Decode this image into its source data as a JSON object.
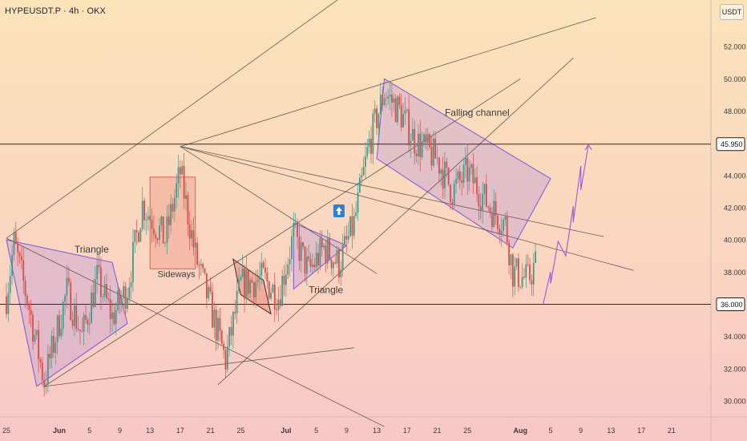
{
  "header": {
    "symbol_title": "HYPEUSDT.P · 4h · OKX",
    "currency_button": "USDT"
  },
  "colors": {
    "background_top": "#fbe3b9",
    "background_bottom": "#f8c7c6",
    "candle_up": "#3e9c8c",
    "candle_down": "#e04a47",
    "channel_outline": "#7a55d9",
    "channel_fill": "#c9a6d2",
    "sideways_fill": "#f0a090",
    "sideways_outline": "#e0604c",
    "trend_line": "#4a4340",
    "projection_line": "#9b59d6",
    "level_line": "#2b2b2b",
    "level_label_bg": "#ffffff"
  },
  "chart_data": {
    "type": "candlestick",
    "title": "",
    "ylabel": "",
    "ylim": [
      29.0,
      54.9
    ],
    "y_ticks": [
      "30.000",
      "32.000",
      "34.000",
      "36.000",
      "38.000",
      "40.000",
      "42.000",
      "44.000",
      "46.000",
      "48.000",
      "50.000",
      "52.000"
    ],
    "x_tick_labels": [
      "25",
      "Jun",
      "5",
      "9",
      "13",
      "17",
      "21",
      "25",
      "Jul",
      "5",
      "9",
      "13",
      "17",
      "21",
      "25",
      "Aug",
      "5",
      "9",
      "13",
      "17",
      "21",
      "25"
    ],
    "x_tick_dates": [
      "2025-05-25",
      "2025-06-01",
      "2025-06-05",
      "2025-06-09",
      "2025-06-13",
      "2025-06-17",
      "2025-06-21",
      "2025-06-25",
      "2025-07-01",
      "2025-07-05",
      "2025-07-09",
      "2025-07-13",
      "2025-07-17",
      "2025-07-21",
      "2025-07-25",
      "2025-08-01",
      "2025-08-05",
      "2025-08-09",
      "2025-08-13",
      "2025-08-17",
      "2025-08-21",
      "2025-08-25"
    ],
    "price_path": [
      {
        "date": "2025-05-25",
        "price": 36.5
      },
      {
        "date": "2025-05-26",
        "price": 39.8
      },
      {
        "date": "2025-05-28",
        "price": 35.8
      },
      {
        "date": "2025-05-30",
        "price": 31.2
      },
      {
        "date": "2025-06-02",
        "price": 36.8
      },
      {
        "date": "2025-06-04",
        "price": 34.0
      },
      {
        "date": "2025-06-06",
        "price": 37.6
      },
      {
        "date": "2025-06-08",
        "price": 35.2
      },
      {
        "date": "2025-06-10",
        "price": 37.0
      },
      {
        "date": "2025-06-12",
        "price": 42.2
      },
      {
        "date": "2025-06-15",
        "price": 40.0
      },
      {
        "date": "2025-06-17",
        "price": 44.2
      },
      {
        "date": "2025-06-19",
        "price": 39.0
      },
      {
        "date": "2025-06-21",
        "price": 35.8
      },
      {
        "date": "2025-06-23",
        "price": 32.5
      },
      {
        "date": "2025-06-25",
        "price": 37.2
      },
      {
        "date": "2025-06-28",
        "price": 37.6
      },
      {
        "date": "2025-06-30",
        "price": 36.5
      },
      {
        "date": "2025-07-02",
        "price": 40.3
      },
      {
        "date": "2025-07-04",
        "price": 38.0
      },
      {
        "date": "2025-07-06",
        "price": 39.5
      },
      {
        "date": "2025-07-08",
        "price": 38.5
      },
      {
        "date": "2025-07-10",
        "price": 41.0
      },
      {
        "date": "2025-07-12",
        "price": 46.0
      },
      {
        "date": "2025-07-14",
        "price": 49.2
      },
      {
        "date": "2025-07-16",
        "price": 48.0
      },
      {
        "date": "2025-07-18",
        "price": 46.2
      },
      {
        "date": "2025-07-21",
        "price": 45.0
      },
      {
        "date": "2025-07-23",
        "price": 43.0
      },
      {
        "date": "2025-07-25",
        "price": 44.2
      },
      {
        "date": "2025-07-28",
        "price": 42.0
      },
      {
        "date": "2025-07-30",
        "price": 41.0
      },
      {
        "date": "2025-07-31",
        "price": 38.0
      },
      {
        "date": "2025-08-02",
        "price": 37.5
      },
      {
        "date": "2025-08-03",
        "price": 38.5
      }
    ],
    "levels": [
      {
        "value": 45.95,
        "label": "45.950"
      },
      {
        "value": 36.0,
        "label": "36.000"
      }
    ],
    "patterns": [
      {
        "label": "Triangle",
        "dates": [
          "2025-05-25",
          "2025-06-08",
          "2025-06-10",
          "2025-05-29"
        ],
        "prices": [
          40.0,
          38.6,
          34.8,
          30.9
        ],
        "label_at": {
          "date": "2025-06-03",
          "price": 39.2
        }
      },
      {
        "label": "Sideways",
        "box": {
          "start": "2025-06-13",
          "end": "2025-06-19",
          "low": 38.2,
          "high": 43.9
        },
        "label_at": {
          "date": "2025-06-14",
          "price": 37.7
        }
      },
      {
        "label": "",
        "dates": [
          "2025-06-24",
          "2025-06-28",
          "2025-06-29",
          "2025-06-25"
        ],
        "prices": [
          38.8,
          37.5,
          35.4,
          36.6
        ]
      },
      {
        "label": "Triangle",
        "dates": [
          "2025-07-02",
          "2025-07-09",
          "2025-07-02"
        ],
        "prices": [
          36.95,
          39.65,
          41.05
        ],
        "label_at": {
          "date": "2025-07-04",
          "price": 36.7
        }
      },
      {
        "label": "Falling channel",
        "dates": [
          "2025-07-13",
          "2025-07-14",
          "2025-08-05",
          "2025-07-31"
        ],
        "prices": [
          45.05,
          50.0,
          43.8,
          39.5
        ],
        "label_at": {
          "date": "2025-07-22",
          "price": 47.7
        }
      }
    ],
    "trend_lines": [
      {
        "dates": [
          "2025-05-25",
          "2025-07-14"
        ],
        "prices": [
          40.1,
          57.0
        ]
      },
      {
        "dates": [
          "2025-05-30",
          "2025-08-01"
        ],
        "prices": [
          30.9,
          50.0
        ]
      },
      {
        "dates": [
          "2025-06-17",
          "2025-08-11"
        ],
        "prices": [
          45.8,
          53.8
        ]
      },
      {
        "dates": [
          "2025-06-17",
          "2025-08-12"
        ],
        "prices": [
          45.8,
          40.2
        ]
      },
      {
        "dates": [
          "2025-06-17",
          "2025-08-16"
        ],
        "prices": [
          45.8,
          38.1
        ]
      },
      {
        "dates": [
          "2025-06-17",
          "2025-07-13"
        ],
        "prices": [
          45.8,
          37.9
        ]
      },
      {
        "dates": [
          "2025-05-25",
          "2025-07-14"
        ],
        "prices": [
          40.1,
          28.4
        ]
      },
      {
        "dates": [
          "2025-05-30",
          "2025-07-10"
        ],
        "prices": [
          30.9,
          33.3
        ]
      },
      {
        "dates": [
          "2025-06-22",
          "2025-08-08"
        ],
        "prices": [
          31.0,
          51.3
        ]
      }
    ],
    "projection_path": [
      {
        "date": "2025-08-04",
        "price": 36.0
      },
      {
        "date": "2025-08-05",
        "price": 38.0
      },
      {
        "date": "2025-08-05",
        "price": 37.3
      },
      {
        "date": "2025-08-06",
        "price": 39.9
      },
      {
        "date": "2025-08-07",
        "price": 39.0
      },
      {
        "date": "2025-08-08",
        "price": 42.1
      },
      {
        "date": "2025-08-08",
        "price": 41.1
      },
      {
        "date": "2025-08-09",
        "price": 44.6
      },
      {
        "date": "2025-08-09",
        "price": 43.1
      },
      {
        "date": "2025-08-10",
        "price": 45.9
      }
    ],
    "annotations": [
      {
        "type": "arrow-up-marker",
        "date": "2025-07-08",
        "price": 41.8
      }
    ]
  }
}
